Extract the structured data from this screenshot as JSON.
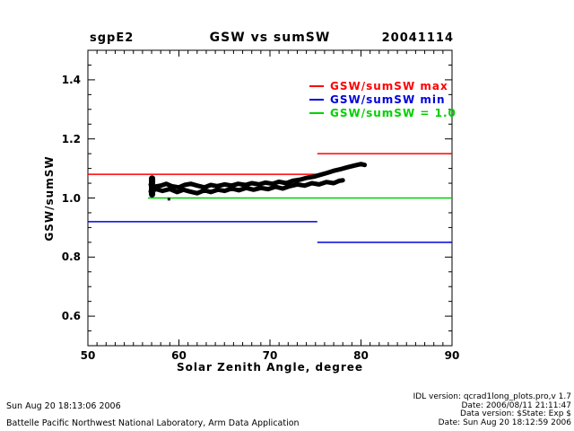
{
  "header": {
    "site": "sgpE2",
    "title": "GSW vs sumSW",
    "date": "20041114"
  },
  "axes": {
    "x": {
      "label": "Solar Zenith Angle, degree",
      "min": 50,
      "max": 90,
      "minor_step": 1
    },
    "y": {
      "label": "GSW/sumSW",
      "min": 0.5,
      "max": 1.5,
      "minor_step": 0.05
    }
  },
  "legend": {
    "items": [
      {
        "label": "GSW/sumSW max",
        "color": "#ff0000"
      },
      {
        "label": "GSW/sumSW min",
        "color": "#0000dd"
      },
      {
        "label": "GSW/sumSW = 1.0",
        "color": "#00d000"
      }
    ]
  },
  "footer_left": {
    "line1": "Sun Aug 20 18:13:06 2006",
    "line2": "Battelle Pacific Northwest National Laboratory, Arm Data Application"
  },
  "footer_right": {
    "lines": [
      "IDL version: qcrad1long_plots.pro,v 1.7",
      "Date: 2006/08/11 21:11:47",
      "Data version: $State: Exp $",
      "Date: Sun Aug 20 18:12:59 2006"
    ]
  },
  "chart_data": {
    "type": "line",
    "title": "GSW vs sumSW",
    "xlabel": "Solar Zenith Angle, degree",
    "ylabel": "GSW/sumSW",
    "xlim": [
      50,
      90
    ],
    "ylim": [
      0.5,
      1.5
    ],
    "xticks": [
      50,
      60,
      70,
      80,
      90
    ],
    "yticks": [
      0.6,
      0.8,
      1.0,
      1.2,
      1.4
    ],
    "grid": false,
    "legend": {
      "position": "upper right",
      "entries": [
        "GSW/sumSW max",
        "GSW/sumSW min",
        "GSW/sumSW = 1.0"
      ]
    },
    "series": [
      {
        "name": "max-limit-line",
        "label": "GSW/sumSW max",
        "color": "#ff0000",
        "segments": [
          {
            "x": [
              50,
              75.2
            ],
            "y": 1.08
          },
          {
            "x": [
              75.2,
              90
            ],
            "y": 1.15
          }
        ]
      },
      {
        "name": "min-limit-line",
        "label": "GSW/sumSW min",
        "color": "#0000dd",
        "segments": [
          {
            "x": [
              50,
              75.2
            ],
            "y": 0.92
          },
          {
            "x": [
              75.2,
              90
            ],
            "y": 0.85
          }
        ]
      },
      {
        "name": "unity-reference-line",
        "label": "GSW/sumSW = 1.0",
        "color": "#00d000",
        "segments": [
          {
            "x": [
              56.6,
              90
            ],
            "y": 1.0
          }
        ]
      },
      {
        "name": "data-trace-upper-branch",
        "label": "GSW/sumSW observed (pm branch)",
        "color": "#000000",
        "points": [
          [
            56.9,
            1.045
          ],
          [
            57.3,
            1.038
          ],
          [
            58,
            1.042
          ],
          [
            58.6,
            1.048
          ],
          [
            59.2,
            1.04
          ],
          [
            60,
            1.036
          ],
          [
            60.6,
            1.044
          ],
          [
            61.3,
            1.048
          ],
          [
            62,
            1.042
          ],
          [
            62.8,
            1.036
          ],
          [
            63.5,
            1.044
          ],
          [
            64.2,
            1.04
          ],
          [
            65,
            1.046
          ],
          [
            65.8,
            1.042
          ],
          [
            66.5,
            1.048
          ],
          [
            67.3,
            1.044
          ],
          [
            68,
            1.05
          ],
          [
            68.8,
            1.046
          ],
          [
            69.5,
            1.052
          ],
          [
            70.3,
            1.048
          ],
          [
            71,
            1.055
          ],
          [
            71.8,
            1.05
          ],
          [
            72.5,
            1.058
          ],
          [
            73.3,
            1.062
          ],
          [
            74,
            1.068
          ],
          [
            74.8,
            1.072
          ],
          [
            75.5,
            1.078
          ],
          [
            76.3,
            1.085
          ],
          [
            77,
            1.092
          ],
          [
            77.8,
            1.098
          ],
          [
            78.5,
            1.104
          ],
          [
            79.3,
            1.11
          ],
          [
            80,
            1.115
          ],
          [
            80.4,
            1.112
          ]
        ]
      },
      {
        "name": "data-trace-lower-branch",
        "label": "GSW/sumSW observed (am branch)",
        "color": "#000000",
        "points": [
          [
            56.9,
            1.022
          ],
          [
            57.5,
            1.03
          ],
          [
            58.2,
            1.024
          ],
          [
            59,
            1.03
          ],
          [
            59.8,
            1.02
          ],
          [
            60.5,
            1.028
          ],
          [
            61.2,
            1.022
          ],
          [
            62,
            1.016
          ],
          [
            62.8,
            1.026
          ],
          [
            63.5,
            1.02
          ],
          [
            64.3,
            1.028
          ],
          [
            65,
            1.024
          ],
          [
            65.8,
            1.032
          ],
          [
            66.6,
            1.026
          ],
          [
            67.4,
            1.034
          ],
          [
            68.2,
            1.028
          ],
          [
            69,
            1.034
          ],
          [
            69.8,
            1.03
          ],
          [
            70.6,
            1.038
          ],
          [
            71.4,
            1.032
          ],
          [
            72.2,
            1.04
          ],
          [
            73,
            1.046
          ],
          [
            73.8,
            1.042
          ],
          [
            74.6,
            1.05
          ],
          [
            75.4,
            1.046
          ],
          [
            76.2,
            1.054
          ],
          [
            77,
            1.05
          ],
          [
            77.6,
            1.058
          ],
          [
            78,
            1.06
          ]
        ]
      }
    ],
    "extra_marks": [
      {
        "type": "blob",
        "x": 57.05,
        "y1": 1.012,
        "y2": 1.066
      },
      {
        "type": "point",
        "x": 58.9,
        "y": 0.996
      }
    ]
  }
}
